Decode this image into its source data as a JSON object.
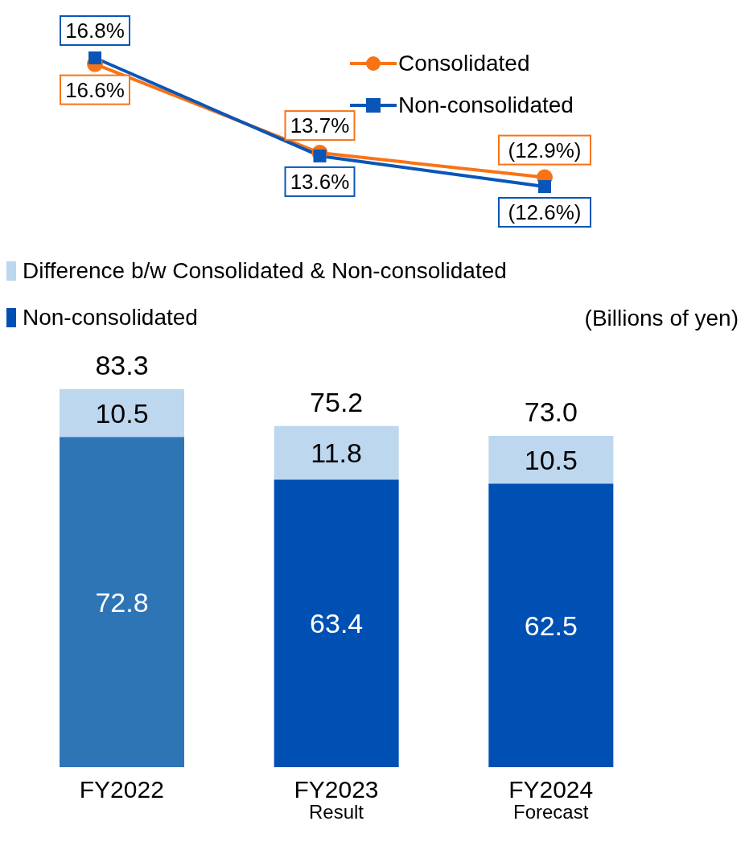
{
  "chart_data": [
    {
      "type": "line",
      "categories": [
        null,
        null,
        null
      ],
      "legend": "top right",
      "series": [
        {
          "name": "Consolidated",
          "color": "#f97316",
          "marker": "circle",
          "values": [
            16.6,
            13.7,
            12.9
          ],
          "value_labels": [
            "16.6%",
            "13.7%",
            "(12.9%)"
          ]
        },
        {
          "name": "Non-consolidated",
          "color": "#0a56b8",
          "marker": "square",
          "values": [
            16.8,
            13.6,
            12.6
          ],
          "value_labels": [
            "16.8%",
            "13.6%",
            "(12.6%)"
          ]
        }
      ]
    },
    {
      "type": "bar",
      "stacked": true,
      "categories": [
        "FY2022",
        "FY2023\nResult",
        "FY2024\nForecast"
      ],
      "legend": "top left",
      "data_labels": true,
      "tick_labels": "x",
      "series": [
        {
          "name": "Non-consolidated",
          "color": "#0050b4",
          "colors": [
            "#2e75b6",
            "#0050b4",
            "#0050b4"
          ],
          "values": [
            72.8,
            63.4,
            62.5
          ]
        },
        {
          "name": "Difference b/w Consolidated & Non-consolidated",
          "color": "#bdd7ee",
          "values": [
            10.5,
            11.8,
            10.5
          ]
        }
      ],
      "totals": [
        "83.3",
        "75.2",
        "73.0"
      ],
      "annotations": [
        "(Billions of yen)"
      ]
    }
  ]
}
